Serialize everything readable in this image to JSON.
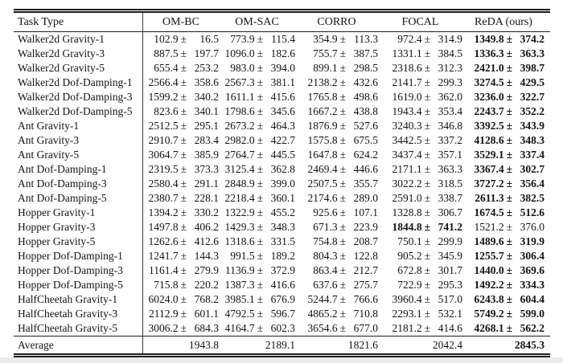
{
  "table": {
    "plus_minus": "±",
    "columns": [
      "Task Type",
      "OM-BC",
      "OM-SAC",
      "CORRO",
      "FOCAL",
      "ReDA (ours)"
    ],
    "rows": [
      {
        "task": "Walker2d Gravity-1",
        "cells": [
          {
            "mean": "102.9",
            "std": "16.5",
            "bold": false
          },
          {
            "mean": "773.9",
            "std": "115.4",
            "bold": false
          },
          {
            "mean": "354.9",
            "std": "113.3",
            "bold": false
          },
          {
            "mean": "972.4",
            "std": "314.9",
            "bold": false
          },
          {
            "mean": "1349.8",
            "std": "374.2",
            "bold": true
          }
        ]
      },
      {
        "task": "Walker2d Gravity-3",
        "cells": [
          {
            "mean": "887.5",
            "std": "197.7",
            "bold": false
          },
          {
            "mean": "1096.0",
            "std": "182.6",
            "bold": false
          },
          {
            "mean": "755.7",
            "std": "387.5",
            "bold": false
          },
          {
            "mean": "1331.1",
            "std": "384.5",
            "bold": false
          },
          {
            "mean": "1336.3",
            "std": "363.3",
            "bold": true
          }
        ]
      },
      {
        "task": "Walker2d Gravity-5",
        "cells": [
          {
            "mean": "655.4",
            "std": "253.2",
            "bold": false
          },
          {
            "mean": "983.0",
            "std": "394.0",
            "bold": false
          },
          {
            "mean": "899.1",
            "std": "298.5",
            "bold": false
          },
          {
            "mean": "2318.6",
            "std": "312.3",
            "bold": false
          },
          {
            "mean": "2421.0",
            "std": "398.7",
            "bold": true
          }
        ]
      },
      {
        "task": "Walker2d Dof-Damping-1",
        "cells": [
          {
            "mean": "2566.4",
            "std": "358.6",
            "bold": false
          },
          {
            "mean": "2567.3",
            "std": "381.1",
            "bold": false
          },
          {
            "mean": "2138.2",
            "std": "432.6",
            "bold": false
          },
          {
            "mean": "2141.7",
            "std": "299.3",
            "bold": false
          },
          {
            "mean": "3274.5",
            "std": "429.5",
            "bold": true
          }
        ]
      },
      {
        "task": "Walker2d Dof-Damping-3",
        "cells": [
          {
            "mean": "1599.2",
            "std": "340.2",
            "bold": false
          },
          {
            "mean": "1611.1",
            "std": "415.6",
            "bold": false
          },
          {
            "mean": "1765.8",
            "std": "498.6",
            "bold": false
          },
          {
            "mean": "1619.0",
            "std": "362.0",
            "bold": false
          },
          {
            "mean": "3236.0",
            "std": "322.7",
            "bold": true
          }
        ]
      },
      {
        "task": "Walker2d Dof-Damping-5",
        "cells": [
          {
            "mean": "823.6",
            "std": "340.1",
            "bold": false
          },
          {
            "mean": "1798.6",
            "std": "345.6",
            "bold": false
          },
          {
            "mean": "1667.2",
            "std": "438.8",
            "bold": false
          },
          {
            "mean": "1943.4",
            "std": "353.4",
            "bold": false
          },
          {
            "mean": "2243.7",
            "std": "352.2",
            "bold": true
          }
        ]
      },
      {
        "task": "Ant Gravity-1",
        "cells": [
          {
            "mean": "2512.5",
            "std": "295.1",
            "bold": false
          },
          {
            "mean": "2673.2",
            "std": "464.3",
            "bold": false
          },
          {
            "mean": "1876.9",
            "std": "527.6",
            "bold": false
          },
          {
            "mean": "3240.3",
            "std": "346.8",
            "bold": false
          },
          {
            "mean": "3392.5",
            "std": "343.9",
            "bold": true
          }
        ]
      },
      {
        "task": "Ant Gravity-3",
        "cells": [
          {
            "mean": "2910.7",
            "std": "283.4",
            "bold": false
          },
          {
            "mean": "2982.0",
            "std": "422.7",
            "bold": false
          },
          {
            "mean": "1575.8",
            "std": "675.5",
            "bold": false
          },
          {
            "mean": "3442.5",
            "std": "337.2",
            "bold": false
          },
          {
            "mean": "4128.6",
            "std": "348.3",
            "bold": true
          }
        ]
      },
      {
        "task": "Ant Gravity-5",
        "cells": [
          {
            "mean": "3064.7",
            "std": "385.9",
            "bold": false
          },
          {
            "mean": "2764.7",
            "std": "445.5",
            "bold": false
          },
          {
            "mean": "1647.8",
            "std": "624.2",
            "bold": false
          },
          {
            "mean": "3437.4",
            "std": "357.1",
            "bold": false
          },
          {
            "mean": "3529.1",
            "std": "337.4",
            "bold": true
          }
        ]
      },
      {
        "task": "Ant Dof-Damping-1",
        "cells": [
          {
            "mean": "2319.5",
            "std": "373.3",
            "bold": false
          },
          {
            "mean": "3125.4",
            "std": "362.8",
            "bold": false
          },
          {
            "mean": "2469.4",
            "std": "446.6",
            "bold": false
          },
          {
            "mean": "2171.1",
            "std": "363.3",
            "bold": false
          },
          {
            "mean": "3367.4",
            "std": "302.7",
            "bold": true
          }
        ]
      },
      {
        "task": "Ant Dof-Damping-3",
        "cells": [
          {
            "mean": "2580.4",
            "std": "291.1",
            "bold": false
          },
          {
            "mean": "2848.9",
            "std": "399.0",
            "bold": false
          },
          {
            "mean": "2507.5",
            "std": "355.7",
            "bold": false
          },
          {
            "mean": "3022.2",
            "std": "318.5",
            "bold": false
          },
          {
            "mean": "3727.2",
            "std": "356.4",
            "bold": true
          }
        ]
      },
      {
        "task": "Ant Dof-Damping-5",
        "cells": [
          {
            "mean": "2380.7",
            "std": "228.1",
            "bold": false
          },
          {
            "mean": "2218.4",
            "std": "360.1",
            "bold": false
          },
          {
            "mean": "2174.6",
            "std": "289.0",
            "bold": false
          },
          {
            "mean": "2591.0",
            "std": "338.7",
            "bold": false
          },
          {
            "mean": "2611.3",
            "std": "382.5",
            "bold": true
          }
        ]
      },
      {
        "task": "Hopper Gravity-1",
        "cells": [
          {
            "mean": "1394.2",
            "std": "330.2",
            "bold": false
          },
          {
            "mean": "1322.9",
            "std": "455.2",
            "bold": false
          },
          {
            "mean": "925.6",
            "std": "107.1",
            "bold": false
          },
          {
            "mean": "1328.8",
            "std": "306.7",
            "bold": false
          },
          {
            "mean": "1674.5",
            "std": "512.6",
            "bold": true
          }
        ]
      },
      {
        "task": "Hopper Gravity-3",
        "cells": [
          {
            "mean": "1497.8",
            "std": "406.2",
            "bold": false
          },
          {
            "mean": "1429.3",
            "std": "348.3",
            "bold": false
          },
          {
            "mean": "671.3",
            "std": "223.9",
            "bold": false
          },
          {
            "mean": "1844.8",
            "std": "741.2",
            "bold": true
          },
          {
            "mean": "1521.2",
            "std": "376.0",
            "bold": false
          }
        ]
      },
      {
        "task": "Hopper Gravity-5",
        "cells": [
          {
            "mean": "1262.6",
            "std": "412.6",
            "bold": false
          },
          {
            "mean": "1318.6",
            "std": "331.5",
            "bold": false
          },
          {
            "mean": "754.8",
            "std": "208.7",
            "bold": false
          },
          {
            "mean": "750.1",
            "std": "299.9",
            "bold": false
          },
          {
            "mean": "1489.6",
            "std": "319.9",
            "bold": true
          }
        ]
      },
      {
        "task": "Hopper Dof-Damping-1",
        "cells": [
          {
            "mean": "1241.7",
            "std": "144.3",
            "bold": false
          },
          {
            "mean": "991.5",
            "std": "189.2",
            "bold": false
          },
          {
            "mean": "804.3",
            "std": "122.8",
            "bold": false
          },
          {
            "mean": "905.2",
            "std": "345.9",
            "bold": false
          },
          {
            "mean": "1255.7",
            "std": "306.4",
            "bold": true
          }
        ]
      },
      {
        "task": "Hopper Dof-Damping-3",
        "cells": [
          {
            "mean": "1161.4",
            "std": "279.9",
            "bold": false
          },
          {
            "mean": "1136.9",
            "std": "372.9",
            "bold": false
          },
          {
            "mean": "863.4",
            "std": "212.7",
            "bold": false
          },
          {
            "mean": "672.8",
            "std": "301.7",
            "bold": false
          },
          {
            "mean": "1440.0",
            "std": "369.6",
            "bold": true
          }
        ]
      },
      {
        "task": "Hopper Dof-Damping-5",
        "cells": [
          {
            "mean": "715.8",
            "std": "220.2",
            "bold": false
          },
          {
            "mean": "1387.3",
            "std": "416.6",
            "bold": false
          },
          {
            "mean": "637.6",
            "std": "275.7",
            "bold": false
          },
          {
            "mean": "722.9",
            "std": "295.3",
            "bold": false
          },
          {
            "mean": "1492.2",
            "std": "334.3",
            "bold": true
          }
        ]
      },
      {
        "task": "HalfCheetah Gravity-1",
        "cells": [
          {
            "mean": "6024.0",
            "std": "768.2",
            "bold": false
          },
          {
            "mean": "3985.1",
            "std": "676.9",
            "bold": false
          },
          {
            "mean": "5244.7",
            "std": "766.6",
            "bold": false
          },
          {
            "mean": "3960.4",
            "std": "517.0",
            "bold": false
          },
          {
            "mean": "6243.8",
            "std": "604.4",
            "bold": true
          }
        ]
      },
      {
        "task": "HalfCheetah Gravity-3",
        "cells": [
          {
            "mean": "2112.9",
            "std": "601.1",
            "bold": false
          },
          {
            "mean": "4792.5",
            "std": "596.7",
            "bold": false
          },
          {
            "mean": "4865.2",
            "std": "710.8",
            "bold": false
          },
          {
            "mean": "2293.1",
            "std": "532.1",
            "bold": false
          },
          {
            "mean": "5749.2",
            "std": "599.0",
            "bold": true
          }
        ]
      },
      {
        "task": "HalfCheetah Gravity-5",
        "cells": [
          {
            "mean": "3006.2",
            "std": "684.3",
            "bold": false
          },
          {
            "mean": "4164.7",
            "std": "602.3",
            "bold": false
          },
          {
            "mean": "3654.6",
            "std": "677.0",
            "bold": false
          },
          {
            "mean": "2181.2",
            "std": "414.6",
            "bold": false
          },
          {
            "mean": "4268.1",
            "std": "562.2",
            "bold": true
          }
        ]
      }
    ],
    "average_row": {
      "label": "Average",
      "values": [
        {
          "value": "1943.8",
          "bold": false
        },
        {
          "value": "2189.1",
          "bold": false
        },
        {
          "value": "1821.6",
          "bold": false
        },
        {
          "value": "2042.4",
          "bold": false
        },
        {
          "value": "2845.3",
          "bold": true
        }
      ]
    }
  }
}
